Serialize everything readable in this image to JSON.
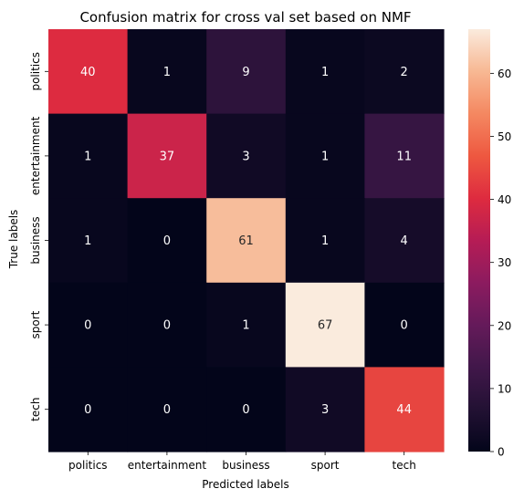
{
  "chart_data": {
    "type": "heatmap",
    "title": "Confusion matrix for cross val set based on NMF",
    "xlabel": "Predicted labels",
    "ylabel": "True labels",
    "x_categories": [
      "politics",
      "entertainment",
      "business",
      "sport",
      "tech"
    ],
    "y_categories": [
      "politics",
      "entertainment",
      "business",
      "sport",
      "tech"
    ],
    "values": [
      [
        40,
        1,
        9,
        1,
        2
      ],
      [
        1,
        37,
        3,
        1,
        11
      ],
      [
        1,
        0,
        61,
        1,
        4
      ],
      [
        0,
        0,
        1,
        67,
        0
      ],
      [
        0,
        0,
        0,
        3,
        44
      ]
    ],
    "colorbar": {
      "min": 0,
      "max": 67,
      "ticks": [
        0,
        10,
        20,
        30,
        40,
        50,
        60
      ],
      "colormap": "rocket"
    }
  }
}
